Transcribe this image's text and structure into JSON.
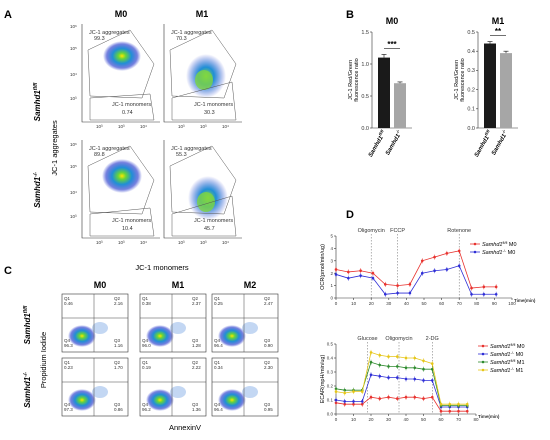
{
  "panels": {
    "a": "A",
    "b": "B",
    "c": "C",
    "d": "D"
  },
  "panel_a": {
    "col_titles": [
      "M0",
      "M1"
    ],
    "row_titles": [
      "Samhd1",
      "Samhd1"
    ],
    "row_sup": [
      "fl/fl",
      "-/-"
    ],
    "y_title": "JC-1 aggregates",
    "x_title": "JC-1 monomers",
    "aggregates_label": "JC-1 aggregates",
    "monomers_label": "JC-1 monomers",
    "ticks_x": [
      "10³",
      "10³",
      "10⁴"
    ],
    "ticks_y": [
      "10⁶",
      "10⁵",
      "10⁴",
      "10³"
    ],
    "cells": [
      {
        "agg": "99.3",
        "mono": "0.74"
      },
      {
        "agg": "70.3",
        "mono": "30.3"
      },
      {
        "agg": "89.8",
        "mono": "10.4"
      },
      {
        "agg": "55.3",
        "mono": "45.7"
      }
    ]
  },
  "panel_c": {
    "col_titles": [
      "M0",
      "M1",
      "M2"
    ],
    "row_titles": [
      "Samhd1",
      "Samhd1"
    ],
    "row_sup": [
      "fl/fl",
      "-/-"
    ],
    "y_title": "Propidium Iodide",
    "x_title": "AnnexinV",
    "cells": [
      {
        "q1": "0.46",
        "q2": "2.16",
        "q3": "1.16",
        "q4": "96.3"
      },
      {
        "q1": "0.38",
        "q2": "2.37",
        "q3": "1.28",
        "q4": "96.0"
      },
      {
        "q1": "0.25",
        "q2": "2.47",
        "q3": "0.90",
        "q4": "96.4"
      },
      {
        "q1": "0.23",
        "q2": "1.70",
        "q3": "0.86",
        "q4": "97.3"
      },
      {
        "q1": "0.19",
        "q2": "2.22",
        "q3": "1.36",
        "q4": "96.2"
      },
      {
        "q1": "0.34",
        "q2": "2.30",
        "q3": "0.95",
        "q4": "96.4"
      }
    ],
    "quad_names": [
      "Q1",
      "Q2",
      "Q3",
      "Q4"
    ]
  },
  "chart_data": [
    {
      "type": "bar",
      "title": "M0",
      "ylabel": "JC-1 Red/Green fluorescence ratio",
      "categories": [
        "Samhd1fl/fl",
        "Samhd1-/-"
      ],
      "cat_main": [
        "Samhd1",
        "Samhd1"
      ],
      "cat_sup": [
        "fl/fl",
        "-/-"
      ],
      "values": [
        1.1,
        0.7
      ],
      "errors": [
        0.05,
        0.02
      ],
      "colors": [
        "#1a1a1a",
        "#a6a6a6"
      ],
      "ylim": [
        0,
        1.5
      ],
      "yticks": [
        "0.0",
        "0.5",
        "1.0",
        "1.5"
      ],
      "significance": "***"
    },
    {
      "type": "bar",
      "title": "M1",
      "ylabel": "JC-1 Red/Green fluorescence ratio",
      "categories": [
        "Samhd1fl/fl",
        "Samhd1-/-"
      ],
      "cat_main": [
        "Samhd1",
        "Samhd1"
      ],
      "cat_sup": [
        "fl/fl",
        "-/-"
      ],
      "values": [
        0.44,
        0.39
      ],
      "errors": [
        0.01,
        0.01
      ],
      "colors": [
        "#1a1a1a",
        "#a6a6a6"
      ],
      "ylim": [
        0,
        0.5
      ],
      "yticks": [
        "0.0",
        "0.1",
        "0.2",
        "0.3",
        "0.4",
        "0.5"
      ],
      "significance": "**"
    },
    {
      "type": "line",
      "ylabel": "OCR(pmol/min/ug)",
      "xlabel": "Time(min)",
      "xlim": [
        0,
        100
      ],
      "ylim": [
        0,
        5
      ],
      "xticks": [
        "0",
        "10",
        "20",
        "30",
        "40",
        "50",
        "60",
        "70",
        "80",
        "90",
        "100"
      ],
      "yticks": [
        "0",
        "1",
        "2",
        "3",
        "4",
        "5"
      ],
      "annotations": [
        {
          "label": "Oligomycin",
          "x": 20
        },
        {
          "label": "FCCP",
          "x": 35
        },
        {
          "label": "Rotenone",
          "x": 70
        }
      ],
      "x": [
        0,
        7,
        14,
        21,
        28,
        35,
        42,
        49,
        56,
        63,
        70,
        77,
        84,
        91
      ],
      "series": [
        {
          "name": "Samhd1fl/fl M0",
          "name_main": "Samhd1",
          "name_sup": "fl/fl",
          "name_tail": " M0",
          "color": "#e8322e",
          "values": [
            2.3,
            2.1,
            2.2,
            2.0,
            1.1,
            1.0,
            1.1,
            3.0,
            3.3,
            3.6,
            3.8,
            0.8,
            0.9,
            0.9
          ]
        },
        {
          "name": "Samhd1-/- M0",
          "name_main": "Samhd1",
          "name_sup": "-/-",
          "name_tail": " M0",
          "color": "#2e2ed6",
          "values": [
            1.9,
            1.6,
            1.8,
            1.6,
            0.3,
            0.4,
            0.4,
            2.0,
            2.2,
            2.3,
            2.6,
            0.3,
            0.3,
            0.3
          ]
        }
      ]
    },
    {
      "type": "line",
      "ylabel": "ECAR(mpH/min/ug)",
      "xlabel": "Time(min)",
      "xlim": [
        0,
        80
      ],
      "ylim": [
        0,
        0.5
      ],
      "xticks": [
        "0",
        "10",
        "20",
        "30",
        "40",
        "50",
        "60",
        "70",
        "80"
      ],
      "yticks": [
        "0.0",
        "0.1",
        "0.2",
        "0.3",
        "0.4",
        "0.5"
      ],
      "annotations": [
        {
          "label": "Glucose",
          "x": 18
        },
        {
          "label": "Oligomycin",
          "x": 36
        },
        {
          "label": "2-DG",
          "x": 55
        }
      ],
      "x": [
        0,
        5,
        10,
        15,
        20,
        25,
        30,
        35,
        40,
        45,
        50,
        55,
        60,
        65,
        70,
        75
      ],
      "series": [
        {
          "name": "Samhd1fl/fl M0",
          "name_main": "Samhd1",
          "name_sup": "fl/fl",
          "name_tail": " M0",
          "color": "#e8322e",
          "values": [
            0.08,
            0.07,
            0.07,
            0.07,
            0.12,
            0.11,
            0.12,
            0.11,
            0.12,
            0.12,
            0.11,
            0.12,
            0.02,
            0.02,
            0.02,
            0.02
          ]
        },
        {
          "name": "Samhd1-/- M0",
          "name_main": "Samhd1",
          "name_sup": "-/-",
          "name_tail": " M0",
          "color": "#2e2ed6",
          "values": [
            0.1,
            0.09,
            0.09,
            0.09,
            0.28,
            0.27,
            0.26,
            0.26,
            0.25,
            0.25,
            0.24,
            0.24,
            0.05,
            0.05,
            0.05,
            0.05
          ]
        },
        {
          "name": "Samhd1fl/fl M1",
          "name_main": "Samhd1",
          "name_sup": "fl/fl",
          "name_tail": " M1",
          "color": "#2e8b2e",
          "values": [
            0.18,
            0.17,
            0.17,
            0.17,
            0.37,
            0.35,
            0.34,
            0.34,
            0.33,
            0.33,
            0.32,
            0.32,
            0.06,
            0.06,
            0.06,
            0.06
          ]
        },
        {
          "name": "Samhd1-/- M1",
          "name_main": "Samhd1",
          "name_sup": "-/-",
          "name_tail": " M1",
          "color": "#e6c619",
          "values": [
            0.16,
            0.15,
            0.16,
            0.16,
            0.44,
            0.42,
            0.41,
            0.41,
            0.4,
            0.4,
            0.38,
            0.36,
            0.07,
            0.07,
            0.07,
            0.07
          ]
        }
      ]
    }
  ]
}
